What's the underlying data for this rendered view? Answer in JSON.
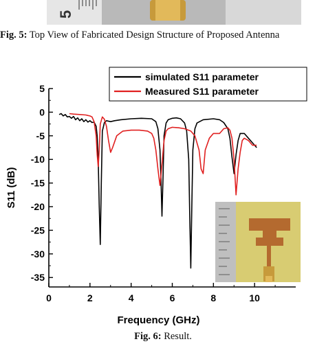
{
  "fig5": {
    "label": "Fig. 5:",
    "text": " Top View of Fabricated Design Structure of Proposed Antenna"
  },
  "fig6": {
    "label": "Fig. 6:",
    "text": " Result."
  },
  "ruler_digit": "5",
  "chart_data": {
    "type": "line",
    "xlabel": "Frequency (GHz)",
    "ylabel": "S11 (dB)",
    "xlim": [
      0,
      12
    ],
    "ylim": [
      -37,
      5
    ],
    "xticks": [
      0,
      2,
      4,
      6,
      8,
      10
    ],
    "yticks": [
      5,
      0,
      -5,
      -10,
      -15,
      -20,
      -25,
      -30,
      -35
    ],
    "grid": false,
    "legend_position": "top-right",
    "series": [
      {
        "name": "simulated S11 parameter",
        "color": "#000000",
        "x": [
          0.5,
          0.6,
          0.7,
          0.8,
          0.9,
          1.0,
          1.1,
          1.2,
          1.3,
          1.4,
          1.5,
          1.6,
          1.7,
          1.8,
          1.9,
          2.0,
          2.1,
          2.2,
          2.3,
          2.35,
          2.4,
          2.45,
          2.5,
          2.55,
          2.6,
          2.7,
          2.8,
          3.0,
          3.2,
          3.5,
          4.0,
          4.5,
          5.0,
          5.2,
          5.3,
          5.4,
          5.45,
          5.5,
          5.55,
          5.6,
          5.7,
          5.8,
          6.0,
          6.2,
          6.4,
          6.6,
          6.7,
          6.8,
          6.85,
          6.9,
          6.95,
          7.0,
          7.1,
          7.2,
          7.5,
          8.0,
          8.3,
          8.5,
          8.7,
          8.8,
          8.9,
          9.0,
          9.1,
          9.2,
          9.3,
          9.5,
          9.7,
          9.9,
          10.1
        ],
        "values": [
          -0.5,
          -0.3,
          -0.8,
          -0.5,
          -1.0,
          -0.9,
          -1.3,
          -0.9,
          -1.6,
          -1.2,
          -1.8,
          -1.4,
          -2.0,
          -1.6,
          -2.1,
          -1.8,
          -2.2,
          -2.1,
          -3.0,
          -5.0,
          -10.0,
          -20.0,
          -28.0,
          -15.0,
          -4.0,
          -2.2,
          -1.8,
          -2.0,
          -1.8,
          -1.6,
          -1.4,
          -1.3,
          -1.4,
          -2.0,
          -3.5,
          -8.0,
          -14.0,
          -22.0,
          -14.0,
          -5.0,
          -2.3,
          -1.6,
          -1.3,
          -1.2,
          -1.4,
          -2.3,
          -4.0,
          -10.0,
          -22.0,
          -33.0,
          -20.0,
          -8.0,
          -3.5,
          -2.3,
          -1.6,
          -1.4,
          -1.6,
          -2.2,
          -3.5,
          -5.5,
          -9.5,
          -13.0,
          -9.0,
          -6.0,
          -4.5,
          -4.5,
          -5.5,
          -6.5,
          -7.5
        ]
      },
      {
        "name": "Measured S11 parameter",
        "color": "#e02020",
        "x": [
          1.0,
          1.2,
          1.5,
          1.8,
          2.0,
          2.1,
          2.2,
          2.3,
          2.35,
          2.4,
          2.45,
          2.5,
          2.6,
          2.7,
          2.8,
          2.9,
          3.0,
          3.1,
          3.3,
          3.6,
          4.0,
          4.4,
          4.8,
          5.0,
          5.1,
          5.2,
          5.3,
          5.4,
          5.5,
          5.6,
          5.7,
          5.8,
          6.0,
          6.3,
          6.6,
          6.9,
          7.1,
          7.3,
          7.4,
          7.5,
          7.6,
          7.8,
          8.0,
          8.3,
          8.5,
          8.7,
          8.8,
          8.9,
          9.0,
          9.1,
          9.2,
          9.3,
          9.4,
          9.5,
          9.7,
          9.9,
          10.1
        ],
        "values": [
          -0.3,
          -0.4,
          -0.5,
          -0.6,
          -0.8,
          -1.0,
          -2.0,
          -5.0,
          -9.0,
          -11.5,
          -8.0,
          -2.5,
          -1.0,
          -1.5,
          -3.0,
          -6.0,
          -8.5,
          -7.5,
          -5.0,
          -4.0,
          -3.8,
          -3.8,
          -4.0,
          -4.5,
          -5.5,
          -8.0,
          -12.0,
          -15.5,
          -11.0,
          -6.0,
          -4.0,
          -3.5,
          -3.2,
          -3.3,
          -3.5,
          -4.0,
          -5.0,
          -8.0,
          -12.0,
          -13.0,
          -8.0,
          -5.5,
          -4.5,
          -4.5,
          -3.5,
          -3.3,
          -3.8,
          -5.5,
          -10.0,
          -17.5,
          -12.0,
          -8.5,
          -6.0,
          -5.5,
          -6.0,
          -7.0,
          -7.0
        ]
      }
    ]
  }
}
